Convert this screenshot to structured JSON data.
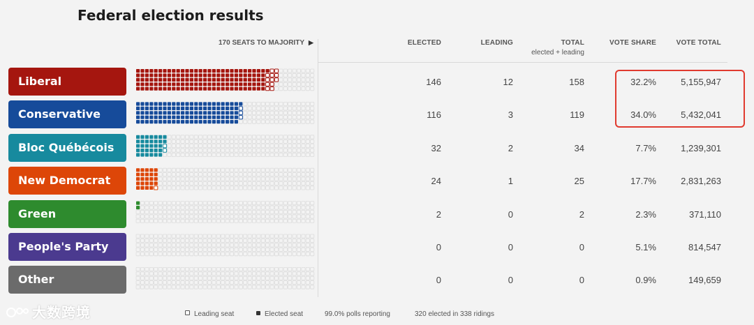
{
  "title": "Federal election results",
  "majority_label": "170 SEATS TO MAJORITY",
  "columns": {
    "elected": "ELECTED",
    "leading": "LEADING",
    "total": "TOTAL",
    "total_sub": "elected + leading",
    "vote_share": "VOTE SHARE",
    "vote_total": "VOTE TOTAL"
  },
  "chart_data": {
    "type": "table",
    "title": "Federal election results",
    "total_seats": 338,
    "majority": 170,
    "parties": [
      {
        "name": "Liberal",
        "color": "#a5160f",
        "elected": 146,
        "leading": 12,
        "total": 158,
        "vote_share": "32.2%",
        "vote_total": "5,155,947"
      },
      {
        "name": "Conservative",
        "color": "#164b9a",
        "elected": 116,
        "leading": 3,
        "total": 119,
        "vote_share": "34.0%",
        "vote_total": "5,432,041"
      },
      {
        "name": "Bloc Québécois",
        "color": "#178a9e",
        "elected": 32,
        "leading": 2,
        "total": 34,
        "vote_share": "7.7%",
        "vote_total": "1,239,301"
      },
      {
        "name": "New Democrat",
        "color": "#dd4608",
        "elected": 24,
        "leading": 1,
        "total": 25,
        "vote_share": "17.7%",
        "vote_total": "2,831,263"
      },
      {
        "name": "Green",
        "color": "#2e8b2e",
        "elected": 2,
        "leading": 0,
        "total": 2,
        "vote_share": "2.3%",
        "vote_total": "371,110"
      },
      {
        "name": "People's Party",
        "color": "#4b3a8f",
        "elected": 0,
        "leading": 0,
        "total": 0,
        "vote_share": "5.1%",
        "vote_total": "814,547"
      },
      {
        "name": "Other",
        "color": "#6b6b6b",
        "elected": 0,
        "leading": 0,
        "total": 0,
        "vote_share": "0.9%",
        "vote_total": "149,659"
      }
    ]
  },
  "legend": {
    "leading_seat": "Leading seat",
    "elected_seat": "Elected seat",
    "polls_reporting": "99.0% polls reporting",
    "elected_summary": "320 elected in 338 ridings"
  },
  "watermark": "大数跨境",
  "colors": {
    "highlight": "#e03a2f",
    "empty_seat": "#dcdcdc"
  }
}
